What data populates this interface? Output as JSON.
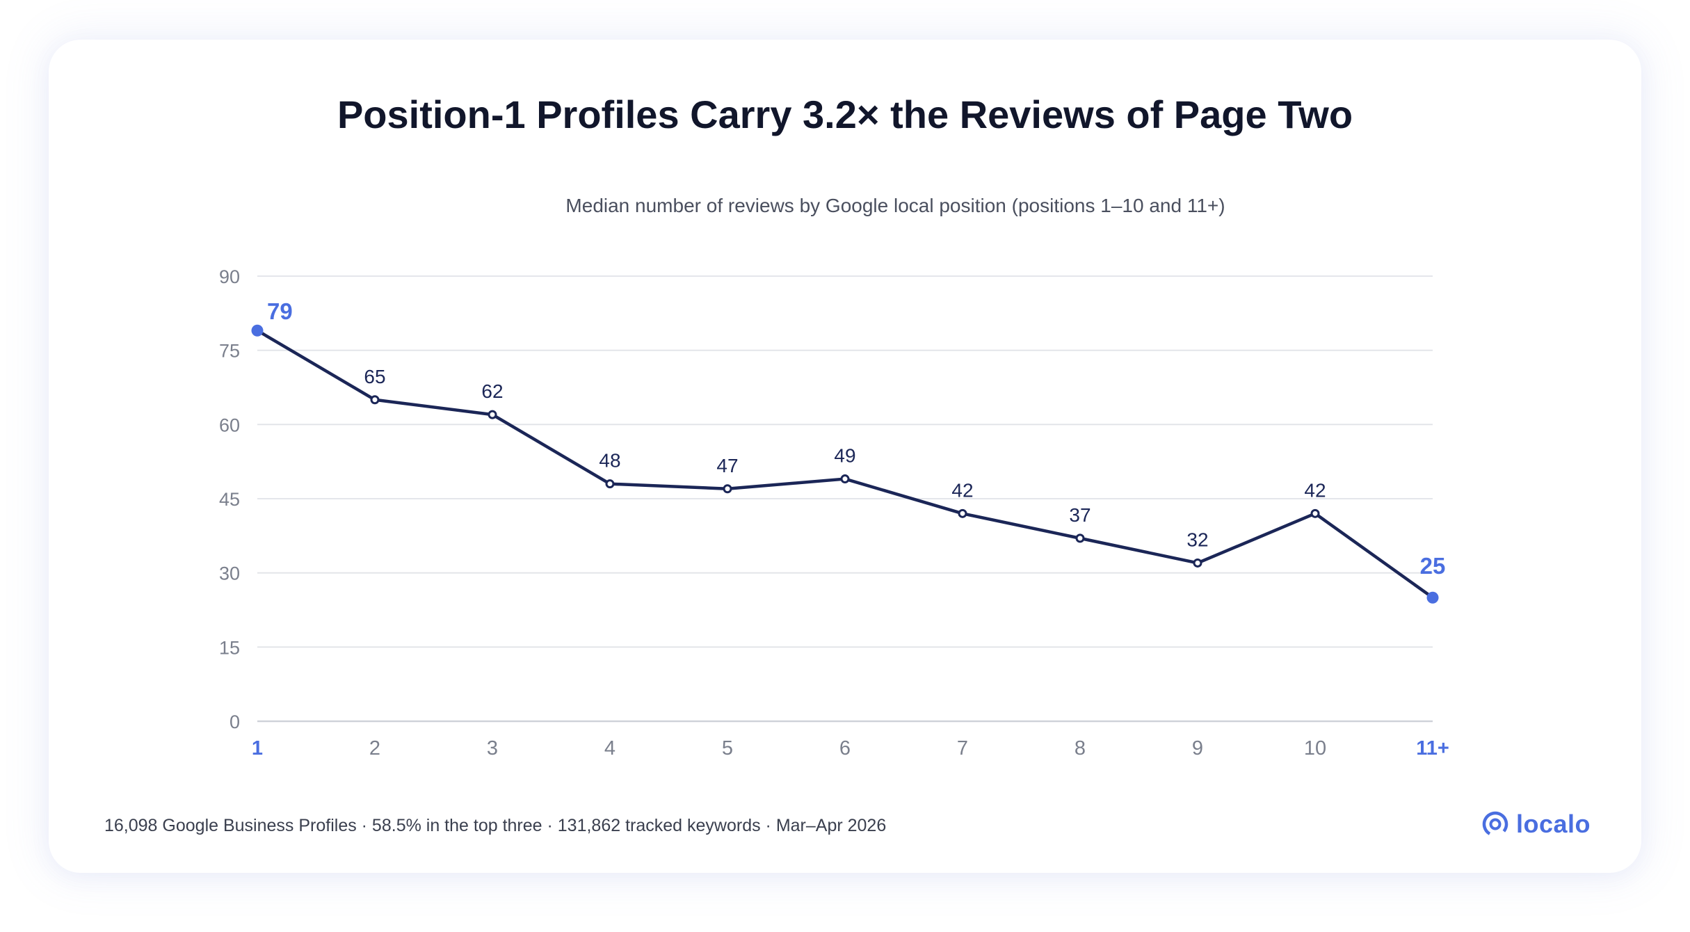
{
  "title": "Position-1 Profiles Carry 3.2× the Reviews of Page Two",
  "subtitle": "Median number of reviews by Google local position (positions 1–10 and 11+)",
  "footer": "16,098 Google Business Profiles · 58.5% in the top three · 131,862 tracked keywords · Mar–Apr 2026",
  "logo": {
    "text": "localo",
    "icon": "location-pin-icon"
  },
  "colors": {
    "line": "#1b2657",
    "highlight": "#4a6ee0",
    "grid": "#e1e3e8",
    "axis_text": "#7a7f8c"
  },
  "chart_data": {
    "type": "line",
    "categories": [
      "1",
      "2",
      "3",
      "4",
      "5",
      "6",
      "7",
      "8",
      "9",
      "10",
      "11+"
    ],
    "values": [
      79,
      65,
      62,
      48,
      47,
      49,
      42,
      37,
      32,
      42,
      25
    ],
    "highlighted": [
      "1",
      "11+"
    ],
    "yticks": [
      0,
      15,
      30,
      45,
      60,
      75,
      90
    ],
    "ylim": [
      0,
      90
    ],
    "grid": true,
    "legend": "none"
  }
}
